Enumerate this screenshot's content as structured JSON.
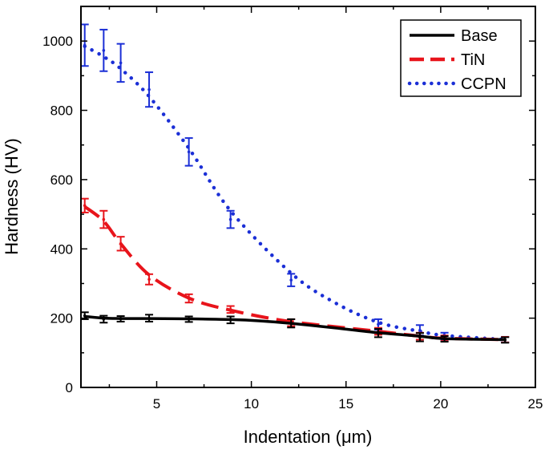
{
  "chart_data": {
    "type": "line",
    "title": "",
    "xlabel": "Indentation (μm)",
    "ylabel": "Hardness (HV)",
    "xlim": [
      1,
      25
    ],
    "ylim": [
      0,
      1100
    ],
    "xticks": [
      5,
      10,
      15,
      20,
      25
    ],
    "yticks": [
      0,
      200,
      400,
      600,
      800,
      1000
    ],
    "grid": false,
    "legend_position": "top-right",
    "series": [
      {
        "name": "Base",
        "color": "#000000",
        "style": "solid",
        "x": [
          1.2,
          2.2,
          3.1,
          4.6,
          6.7,
          8.9,
          12.1,
          16.7,
          18.9,
          20.2,
          23.4
        ],
        "y": [
          207,
          197,
          198,
          200,
          197,
          195,
          185,
          157,
          145,
          140,
          137
        ],
        "err": [
          10,
          10,
          8,
          10,
          8,
          10,
          12,
          12,
          12,
          8,
          8
        ],
        "curve_x": [
          1.2,
          2.2,
          3.1,
          4.6,
          6.7,
          8.9,
          10.5,
          12.1,
          14.4,
          16.7,
          18.9,
          20.2,
          23.4
        ],
        "curve_y": [
          205,
          200,
          199,
          199,
          198,
          196,
          192,
          185,
          172,
          158,
          148,
          141,
          138
        ]
      },
      {
        "name": "TiN",
        "color": "#e8141b",
        "style": "dash",
        "x": [
          1.2,
          2.2,
          3.1,
          4.6,
          6.7,
          8.9,
          12.1,
          16.7,
          18.9,
          20.2,
          23.4
        ],
        "y": [
          525,
          485,
          415,
          312,
          257,
          225,
          187,
          162,
          148,
          142,
          138
        ],
        "err": [
          20,
          25,
          20,
          15,
          12,
          10,
          10,
          10,
          10,
          8,
          8
        ],
        "curve_x": [
          1.2,
          2.2,
          3.1,
          4.6,
          6.7,
          8.9,
          12.1,
          16.7,
          18.9,
          20.2,
          23.4
        ],
        "curve_y": [
          522,
          480,
          415,
          325,
          258,
          223,
          190,
          162,
          148,
          142,
          138
        ]
      },
      {
        "name": "CCPN",
        "color": "#1b2fd6",
        "style": "dot",
        "x": [
          1.2,
          2.2,
          3.1,
          4.6,
          6.7,
          8.9,
          12.1,
          16.7,
          18.9,
          20.2,
          23.4
        ],
        "y": [
          988,
          973,
          937,
          860,
          680,
          485,
          310,
          182,
          165,
          148,
          138
        ],
        "err": [
          60,
          60,
          55,
          50,
          40,
          25,
          18,
          15,
          15,
          10,
          8
        ],
        "curve_x": [
          1.2,
          2.2,
          3.1,
          4.6,
          6.7,
          8.9,
          12.1,
          14.4,
          16.7,
          18.9,
          20.2,
          23.4
        ],
        "curve_y": [
          985,
          955,
          920,
          840,
          690,
          510,
          330,
          245,
          188,
          162,
          150,
          138
        ]
      }
    ]
  }
}
